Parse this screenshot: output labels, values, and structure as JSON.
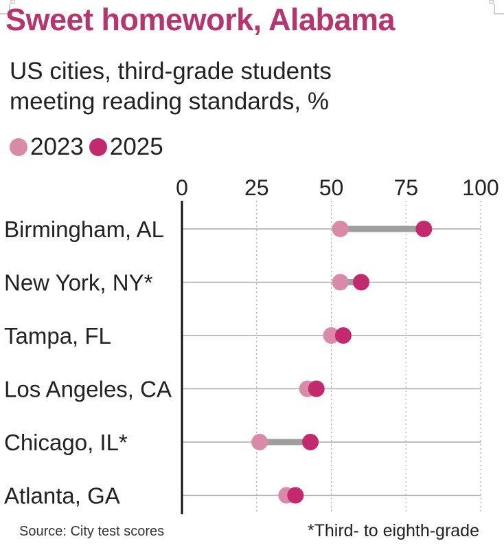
{
  "colors": {
    "title": "#b5366f",
    "series_2023": "#d98aa8",
    "series_2025": "#c32a6e",
    "connector": "#9e9e9e",
    "grid": "#aaaaaa",
    "axis": "#111111",
    "text": "#222222"
  },
  "chart_data": {
    "type": "dumbbell",
    "title": "Sweet homework, Alabama",
    "subtitle_lines": [
      "US cities, third-grade students",
      "meeting reading standards, %"
    ],
    "series": [
      {
        "name": "2023",
        "values": [
          53,
          53,
          50,
          42,
          26,
          35
        ]
      },
      {
        "name": "2025",
        "values": [
          81,
          60,
          54,
          45,
          43,
          38
        ]
      }
    ],
    "categories": [
      "Birmingham, AL",
      "New York, NY*",
      "Tampa, FL",
      "Los Angeles, CA",
      "Chicago, IL*",
      "Atlanta, GA"
    ],
    "xlim": [
      0,
      100
    ],
    "xticks": [
      0,
      25,
      50,
      75,
      100
    ],
    "xtick_labels": [
      "0",
      "25",
      "50",
      "75",
      "100"
    ],
    "grid": true,
    "legend_position": "top-left",
    "source": "Source: City test scores",
    "footnote": "*Third- to eighth-grade"
  }
}
